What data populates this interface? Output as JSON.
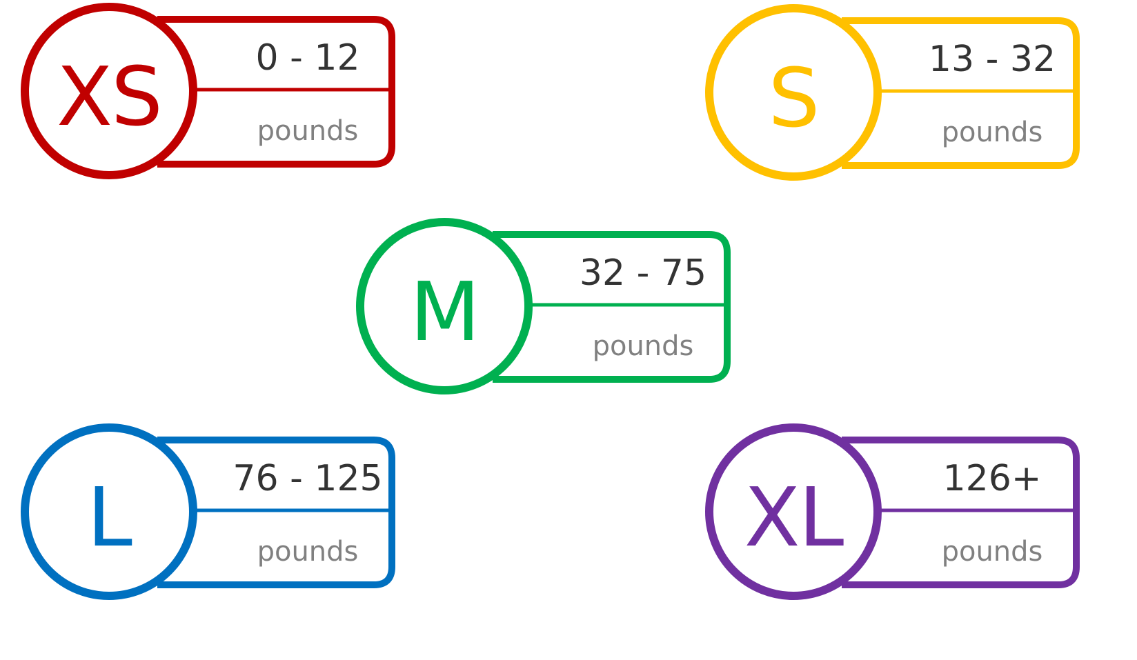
{
  "sizes": [
    {
      "label": "XS",
      "range": "0 - 12",
      "unit": "pounds",
      "color": "#c00000"
    },
    {
      "label": "S",
      "range": "13 - 32",
      "unit": "pounds",
      "color": "#ffc000"
    },
    {
      "label": "M",
      "range": "32 - 75",
      "unit": "pounds",
      "color": "#00b050"
    },
    {
      "label": "L",
      "range": "76 - 125",
      "unit": "pounds",
      "color": "#0070c0"
    },
    {
      "label": "XL",
      "range": "126+",
      "unit": "pounds",
      "color": "#7030a0"
    }
  ]
}
